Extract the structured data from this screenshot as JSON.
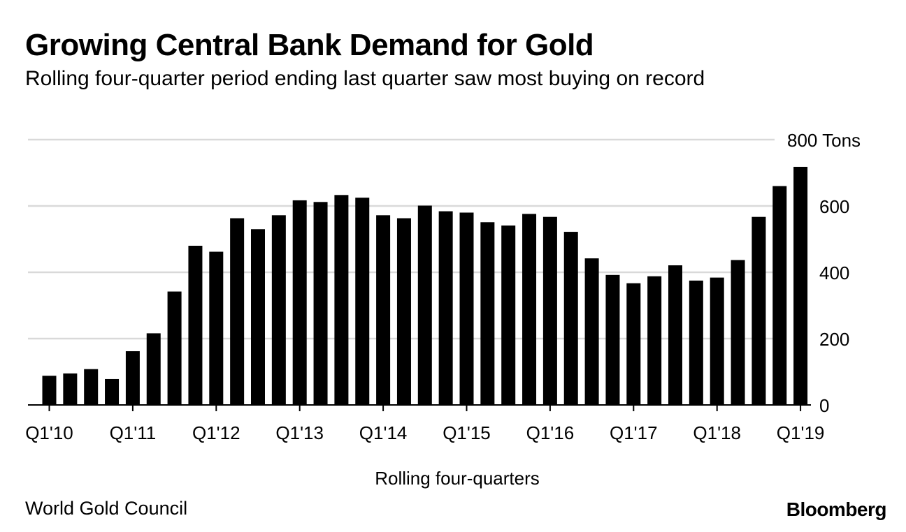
{
  "title": "Growing Central Bank Demand for Gold",
  "subtitle": "Rolling four-quarter period ending last quarter saw most buying on record",
  "source": "World Gold Council",
  "brand": "Bloomberg",
  "colors": {
    "bar": "#000000",
    "grid": "#d9d9d9",
    "axis": "#000000",
    "background": "#ffffff"
  },
  "chart_data": {
    "type": "bar",
    "title": "Growing Central Bank Demand for Gold",
    "subtitle": "Rolling four-quarter period ending last quarter saw most buying on record",
    "xlabel": "Rolling four-quarters",
    "ylabel": "",
    "y_unit": "Tons",
    "ylim": [
      0,
      800
    ],
    "yticks": [
      0,
      200,
      400,
      600,
      800
    ],
    "ytick_labels": [
      "0",
      "200",
      "400",
      "600",
      "800 Tons"
    ],
    "grid": true,
    "y_axis_side": "right",
    "categories": [
      "Q1'10",
      "Q2'10",
      "Q3'10",
      "Q4'10",
      "Q1'11",
      "Q2'11",
      "Q3'11",
      "Q4'11",
      "Q1'12",
      "Q2'12",
      "Q3'12",
      "Q4'12",
      "Q1'13",
      "Q2'13",
      "Q3'13",
      "Q4'13",
      "Q1'14",
      "Q2'14",
      "Q3'14",
      "Q4'14",
      "Q1'15",
      "Q2'15",
      "Q3'15",
      "Q4'15",
      "Q1'16",
      "Q2'16",
      "Q3'16",
      "Q4'16",
      "Q1'17",
      "Q2'17",
      "Q3'17",
      "Q4'17",
      "Q1'18",
      "Q2'18",
      "Q3'18",
      "Q4'18",
      "Q1'19"
    ],
    "values": [
      88,
      95,
      108,
      78,
      162,
      216,
      342,
      480,
      462,
      563,
      530,
      572,
      617,
      612,
      633,
      625,
      572,
      563,
      601,
      584,
      580,
      551,
      541,
      576,
      567,
      522,
      442,
      392,
      367,
      388,
      421,
      375,
      384,
      437,
      567,
      660,
      718
    ],
    "xtick_labels": [
      "Q1'10",
      "Q1'11",
      "Q1'12",
      "Q1'13",
      "Q1'14",
      "Q1'15",
      "Q1'16",
      "Q1'17",
      "Q1'18",
      "Q1'19"
    ],
    "legend": "none"
  }
}
